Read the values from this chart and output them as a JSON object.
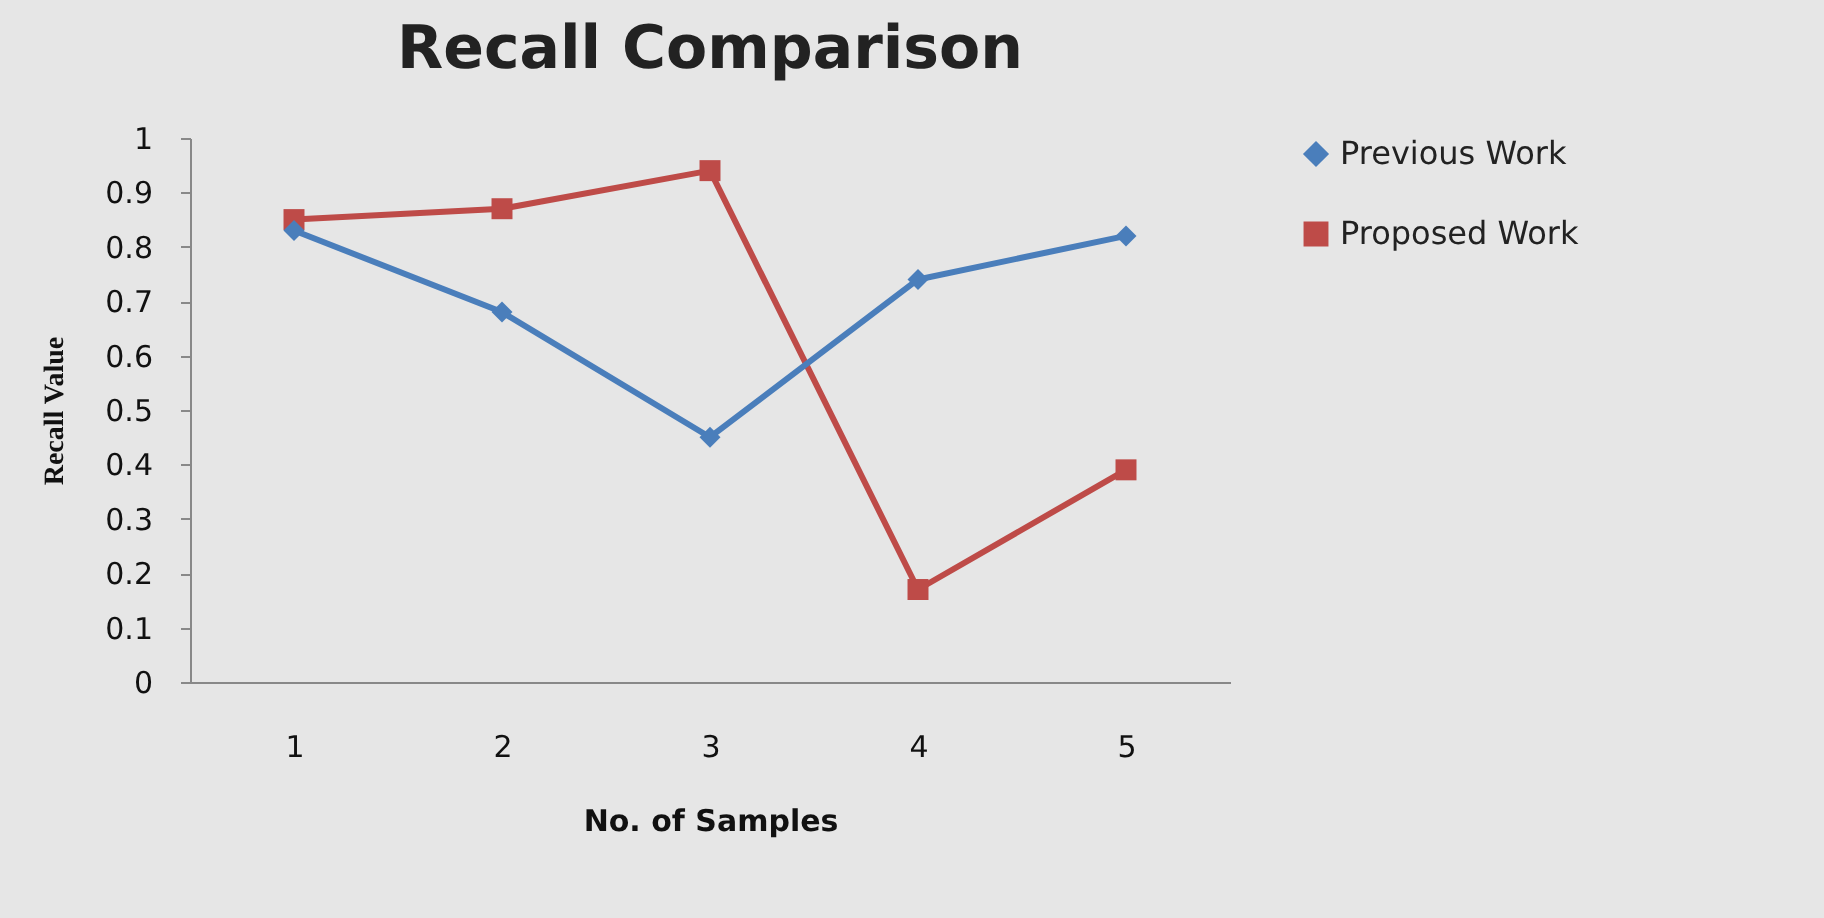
{
  "chart_data": {
    "type": "line",
    "title": "Recall Comparison",
    "xlabel": "No. of Samples",
    "ylabel": "Recall Value",
    "categories": [
      "1",
      "2",
      "3",
      "4",
      "5"
    ],
    "series": [
      {
        "name": "Previous Work",
        "color": "#4a7ebb",
        "marker": "diamond",
        "values": [
          0.83,
          0.68,
          0.45,
          0.74,
          0.82
        ]
      },
      {
        "name": "Proposed Work",
        "color": "#be4b48",
        "marker": "square",
        "values": [
          0.85,
          0.87,
          0.94,
          0.17,
          0.39
        ]
      }
    ],
    "ylim": [
      0,
      1
    ],
    "yticks": [
      0,
      0.1,
      0.2,
      0.3,
      0.4,
      0.5,
      0.6,
      0.7,
      0.8,
      0.9,
      1
    ],
    "grid": false,
    "legend": "right"
  }
}
